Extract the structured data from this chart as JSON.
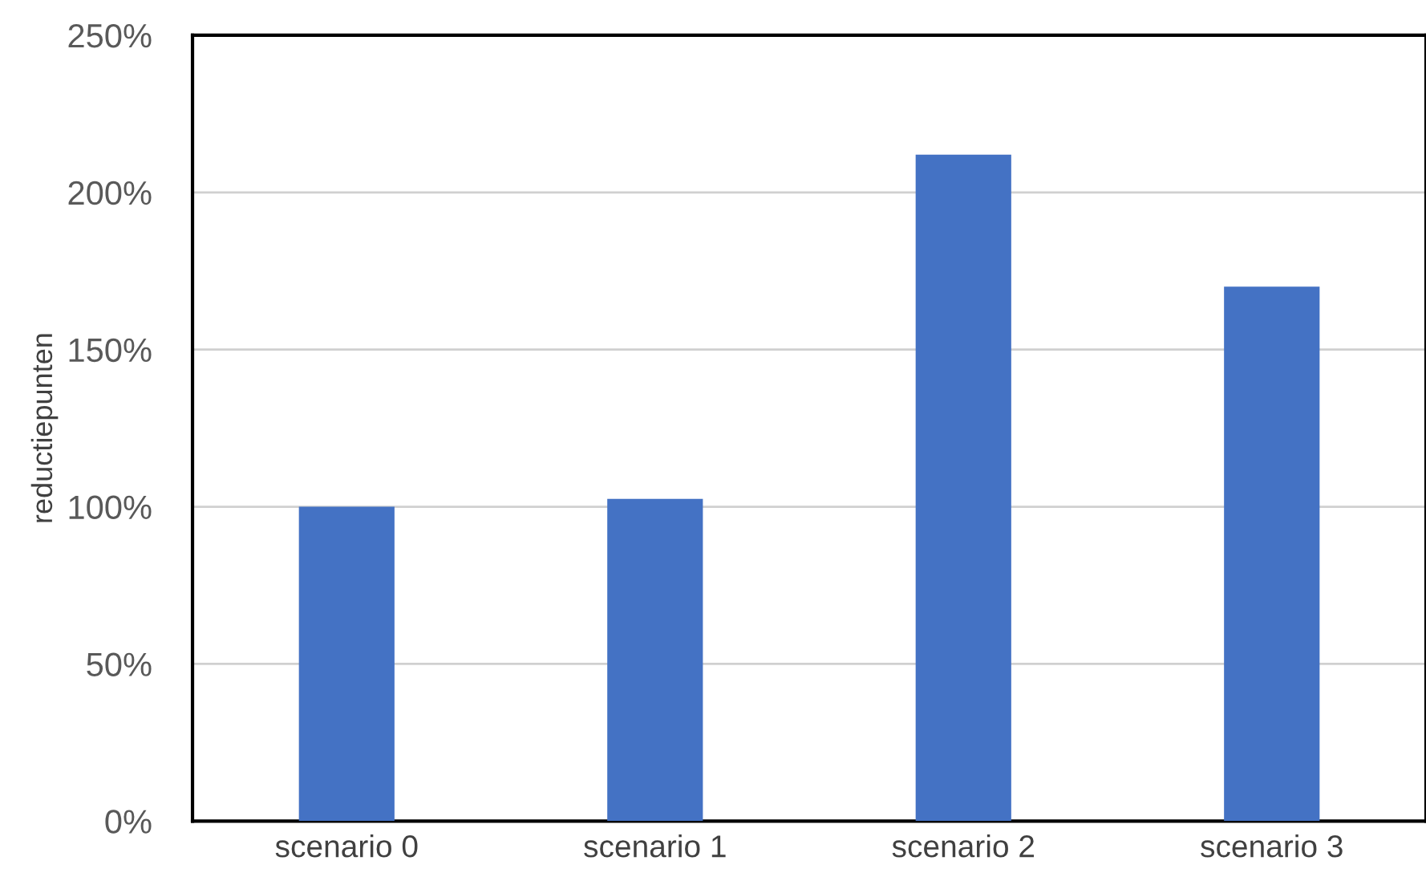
{
  "chart_data": {
    "type": "bar",
    "ylabel": "reductiepunten",
    "categories": [
      "scenario 0",
      "scenario 1",
      "scenario 2",
      "scenario 3"
    ],
    "values": [
      100,
      102.5,
      212,
      170
    ],
    "color": "#4472c4",
    "ylim": [
      0,
      250
    ],
    "yticks": [
      {
        "value": 0,
        "label": "0%"
      },
      {
        "value": 50,
        "label": "50%"
      },
      {
        "value": 100,
        "label": "100%"
      },
      {
        "value": 150,
        "label": "150%"
      },
      {
        "value": 200,
        "label": "200%"
      },
      {
        "value": 250,
        "label": "250%"
      }
    ],
    "grid": "y"
  }
}
